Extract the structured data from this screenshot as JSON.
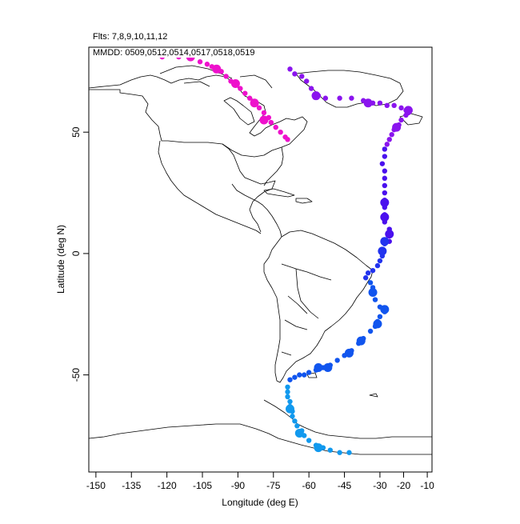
{
  "header": {
    "flights": "Flts: 7,8,9,10,11,12",
    "mmdd": "MMDD: 0509,0512,0514,0517,0518,0519"
  },
  "axes": {
    "xlabel": "Longitude (deg E)",
    "ylabel": "Latitude (deg N)",
    "xlim": [
      -153,
      -8
    ],
    "ylim": [
      -90,
      85
    ],
    "xticks": [
      -150,
      -135,
      -120,
      -105,
      -90,
      -75,
      -60,
      -45,
      -30,
      -20,
      -10
    ],
    "yticks": [
      -50,
      0,
      50
    ]
  },
  "colors": {
    "flight_7": "#ee11cc",
    "flight_8": "#8a14ee",
    "flight_9": "#4a10ee",
    "flight_10": "#2233ee",
    "flight_11": "#1155ee",
    "flight_12": "#1199ee",
    "coastline": "#000000"
  },
  "chart_data": {
    "type": "scatter",
    "x_unit": "deg E",
    "y_unit": "deg N",
    "series": [
      {
        "color": "#ee11cc",
        "points": [
          [
            -122,
            81
          ],
          [
            -115,
            81
          ],
          [
            -110,
            81
          ],
          [
            -106,
            79
          ],
          [
            -103,
            78
          ],
          [
            -101,
            77
          ],
          [
            -99,
            76
          ],
          [
            -97,
            75
          ],
          [
            -95,
            73
          ],
          [
            -93,
            71
          ],
          [
            -91,
            70
          ],
          [
            -89,
            68
          ],
          [
            -87,
            66
          ],
          [
            -85,
            64
          ],
          [
            -83,
            62
          ],
          [
            -81,
            60
          ],
          [
            -79,
            58
          ],
          [
            -77,
            56
          ],
          [
            -76,
            54
          ],
          [
            -74,
            52
          ],
          [
            -72,
            50
          ],
          [
            -70,
            48
          ],
          [
            -69,
            47
          ]
        ],
        "big": [
          [
            -110,
            81
          ],
          [
            -99,
            76
          ],
          [
            -91,
            70
          ],
          [
            -83,
            62
          ],
          [
            -79,
            55
          ]
        ]
      },
      {
        "color": "#8a14ee",
        "points": [
          [
            -68,
            76
          ],
          [
            -66,
            74
          ],
          [
            -63,
            73
          ],
          [
            -61,
            71
          ],
          [
            -59,
            68
          ],
          [
            -56,
            65
          ],
          [
            -53,
            64
          ],
          [
            -47,
            64
          ],
          [
            -42,
            64
          ],
          [
            -37,
            63
          ],
          [
            -35,
            62
          ],
          [
            -33,
            62
          ],
          [
            -30,
            62
          ],
          [
            -27,
            61
          ],
          [
            -24,
            61
          ],
          [
            -21,
            60
          ],
          [
            -19,
            59
          ],
          [
            -18,
            58
          ],
          [
            -19,
            57
          ],
          [
            -21,
            55
          ],
          [
            -22,
            53
          ],
          [
            -24,
            51
          ],
          [
            -25,
            49
          ],
          [
            -26,
            47
          ],
          [
            -27,
            45
          ]
        ],
        "big": [
          [
            -57,
            65
          ],
          [
            -35,
            62
          ],
          [
            -18,
            59
          ],
          [
            -23,
            52
          ]
        ]
      },
      {
        "color": "#4a10ee",
        "points": [
          [
            -28,
            43
          ],
          [
            -28,
            40
          ],
          [
            -29,
            37
          ],
          [
            -28,
            34
          ],
          [
            -28,
            31
          ],
          [
            -28,
            28
          ],
          [
            -28,
            25
          ],
          [
            -28,
            22
          ],
          [
            -28,
            19
          ],
          [
            -28,
            16
          ],
          [
            -28,
            13
          ],
          [
            -26,
            10
          ],
          [
            -26,
            8
          ],
          [
            -26,
            5
          ]
        ],
        "big": [
          [
            -28,
            21
          ],
          [
            -28,
            15
          ],
          [
            -26,
            8
          ]
        ]
      },
      {
        "color": "#2233ee",
        "points": [
          [
            -28,
            4
          ],
          [
            -29,
            1
          ],
          [
            -29,
            -1
          ],
          [
            -30,
            -3
          ],
          [
            -31,
            -5
          ],
          [
            -33,
            -7
          ],
          [
            -35,
            -8
          ],
          [
            -36,
            -10
          ]
        ],
        "big": [
          [
            -28,
            5
          ],
          [
            -29,
            1
          ]
        ]
      },
      {
        "color": "#1155ee",
        "points": [
          [
            -34,
            -12
          ],
          [
            -33,
            -14
          ],
          [
            -33,
            -16
          ],
          [
            -32,
            -19
          ],
          [
            -30,
            -22
          ],
          [
            -28,
            -24
          ],
          [
            -30,
            -26
          ],
          [
            -31,
            -28
          ],
          [
            -32,
            -30
          ],
          [
            -34,
            -32
          ],
          [
            -37,
            -35
          ],
          [
            -39,
            -37
          ],
          [
            -42,
            -40
          ],
          [
            -45,
            -42
          ],
          [
            -48,
            -44
          ],
          [
            -51,
            -46
          ],
          [
            -54,
            -47
          ],
          [
            -57,
            -48
          ],
          [
            -60,
            -49
          ],
          [
            -62,
            -50
          ],
          [
            -64,
            -50
          ],
          [
            -66,
            -51
          ],
          [
            -68,
            -52
          ]
        ],
        "big": [
          [
            -33,
            -16
          ],
          [
            -28,
            -23
          ],
          [
            -31,
            -29
          ],
          [
            -38,
            -36
          ],
          [
            -43,
            -41
          ],
          [
            -52,
            -47
          ],
          [
            -56,
            -47
          ]
        ]
      },
      {
        "color": "#1199ee",
        "points": [
          [
            -69,
            -55
          ],
          [
            -69,
            -57
          ],
          [
            -69,
            -59
          ],
          [
            -68,
            -61
          ],
          [
            -68,
            -63
          ],
          [
            -67,
            -65
          ],
          [
            -67,
            -67
          ],
          [
            -66,
            -69
          ],
          [
            -65,
            -71
          ],
          [
            -63,
            -73
          ],
          [
            -62,
            -75
          ],
          [
            -60,
            -77
          ],
          [
            -57,
            -79
          ],
          [
            -54,
            -80
          ],
          [
            -51,
            -81
          ],
          [
            -47,
            -82
          ],
          [
            -43,
            -82
          ]
        ],
        "big": [
          [
            -68,
            -64
          ],
          [
            -64,
            -74
          ],
          [
            -56,
            -80
          ]
        ]
      }
    ]
  }
}
